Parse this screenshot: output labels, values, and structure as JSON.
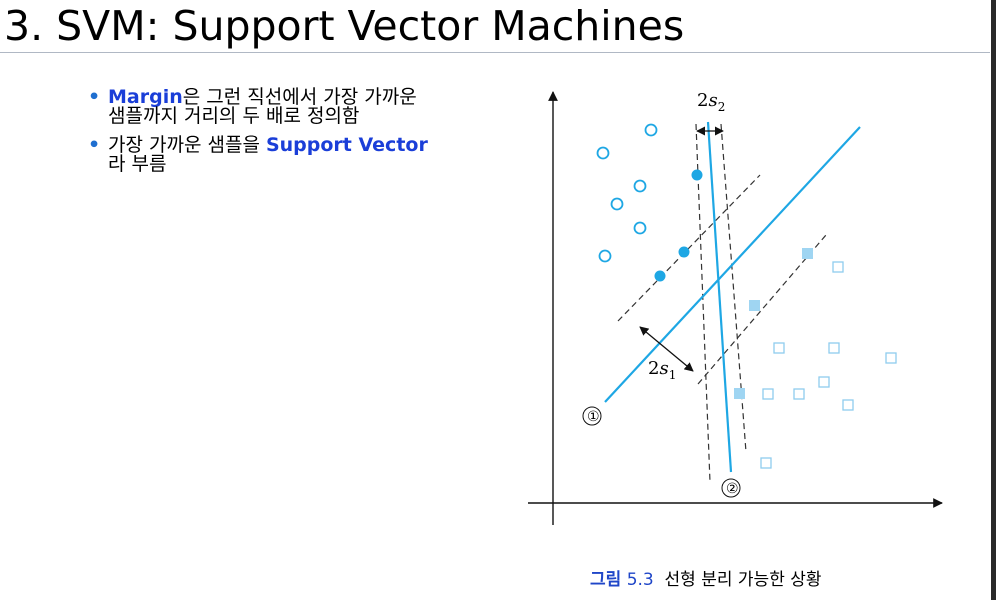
{
  "title": "3. SVM: Support Vector Machines",
  "bullets": [
    {
      "highlight": "Margin",
      "text_after": "은 그런 직선에서 가장 가까운",
      "line2": "샘플까지 거리의 두 배로 정의함"
    },
    {
      "text_before": "가장 가까운 샘플을 ",
      "highlight": "Support Vector",
      "line2": "라 부름"
    }
  ],
  "figure": {
    "label_2s": "2",
    "s2_var": "s",
    "s2_sub": "2",
    "s1_var": "s",
    "s1_sub": "1",
    "line1_marker": "①",
    "line2_marker": "②",
    "colors": {
      "accent": "#1ea7e4",
      "square": "#9fd5f2",
      "dash": "#333333"
    }
  },
  "caption": {
    "fig_word": "그림",
    "fig_num": "5.3",
    "text": "선형 분리 가능한 상황"
  }
}
